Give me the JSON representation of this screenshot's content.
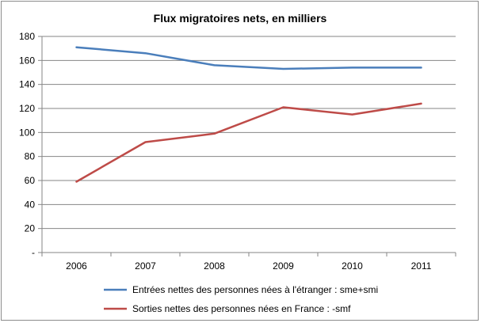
{
  "chart_data": {
    "type": "line",
    "title": "Flux migratoires nets, en milliers",
    "xlabel": "",
    "ylabel": "",
    "categories": [
      "2006",
      "2007",
      "2008",
      "2009",
      "2010",
      "2011"
    ],
    "ylim": [
      0,
      180
    ],
    "yticks": [
      "-",
      "20",
      "40",
      "60",
      "80",
      "100",
      "120",
      "140",
      "160",
      "180"
    ],
    "grid": true,
    "legend_position": "bottom",
    "series": [
      {
        "name": "Entrées nettes des personnes nées à l'étranger : sme+smi",
        "color": "#4a7ebb",
        "values": [
          171,
          166,
          156,
          153,
          154,
          154
        ]
      },
      {
        "name": "Sorties nettes des personnes nées en France : -smf",
        "color": "#be4b48",
        "values": [
          59,
          92,
          99,
          121,
          115,
          124
        ]
      }
    ]
  }
}
